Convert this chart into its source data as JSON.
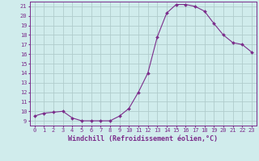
{
  "x": [
    0,
    1,
    2,
    3,
    4,
    5,
    6,
    7,
    8,
    9,
    10,
    11,
    12,
    13,
    14,
    15,
    16,
    17,
    18,
    19,
    20,
    21,
    22,
    23
  ],
  "y": [
    9.5,
    9.8,
    9.9,
    10.0,
    9.3,
    9.0,
    9.0,
    9.0,
    9.0,
    9.5,
    10.3,
    12.0,
    14.0,
    17.8,
    20.3,
    21.2,
    21.2,
    21.0,
    20.5,
    19.2,
    18.0,
    17.2,
    17.0,
    16.2
  ],
  "line_color": "#7b2d8b",
  "marker": "D",
  "marker_size": 2.0,
  "bg_color": "#d0ecec",
  "grid_color": "#b0cccc",
  "xlabel": "Windchill (Refroidissement éolien,°C)",
  "xlim": [
    -0.5,
    23.5
  ],
  "ylim": [
    8.5,
    21.5
  ],
  "yticks": [
    9,
    10,
    11,
    12,
    13,
    14,
    15,
    16,
    17,
    18,
    19,
    20,
    21
  ],
  "xticks": [
    0,
    1,
    2,
    3,
    4,
    5,
    6,
    7,
    8,
    9,
    10,
    11,
    12,
    13,
    14,
    15,
    16,
    17,
    18,
    19,
    20,
    21,
    22,
    23
  ],
  "tick_color": "#7b2d8b",
  "label_color": "#7b2d8b",
  "label_fontsize": 6.0,
  "tick_fontsize": 5.0
}
